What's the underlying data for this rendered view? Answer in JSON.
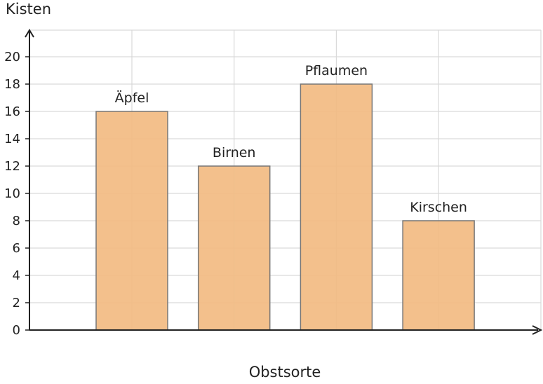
{
  "chart_data": {
    "type": "bar",
    "categories": [
      "Äpfel",
      "Birnen",
      "Pflaumen",
      "Kirschen"
    ],
    "values": [
      16,
      12,
      18,
      8
    ],
    "xlabel": "Obstsorte",
    "ylabel": "Kisten",
    "ylim": [
      0,
      22
    ],
    "yticks": [
      0,
      2,
      4,
      6,
      8,
      10,
      12,
      14,
      16,
      18,
      20
    ],
    "grid": true,
    "colors": {
      "bar_fill": "#f2bb82",
      "bar_stroke": "#777777",
      "grid": "#d9d9d9",
      "axis": "#222222"
    }
  }
}
